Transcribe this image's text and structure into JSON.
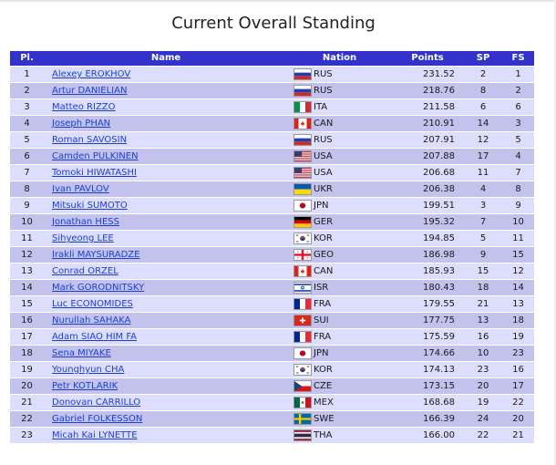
{
  "page": {
    "title": "Current Overall Standing"
  },
  "table": {
    "headers": {
      "pl": "Pl.",
      "name": "Name",
      "nation": "Nation",
      "points": "Points",
      "sp": "SP",
      "fs": "FS"
    },
    "rows": [
      {
        "pl": "1",
        "name": "Alexey EROKHOV",
        "flag": "russia-flag",
        "nation": "RUS",
        "points": "231.52",
        "sp": "2",
        "fs": "1"
      },
      {
        "pl": "2",
        "name": "Artur DANIELIAN",
        "flag": "russia-flag",
        "nation": "RUS",
        "points": "218.76",
        "sp": "8",
        "fs": "2"
      },
      {
        "pl": "3",
        "name": "Matteo RIZZO",
        "flag": "italy-flag",
        "nation": "ITA",
        "points": "211.58",
        "sp": "6",
        "fs": "6"
      },
      {
        "pl": "4",
        "name": "Joseph PHAN",
        "flag": "canada-flag",
        "nation": "CAN",
        "points": "210.91",
        "sp": "14",
        "fs": "3"
      },
      {
        "pl": "5",
        "name": "Roman SAVOSIN",
        "flag": "russia-flag",
        "nation": "RUS",
        "points": "207.91",
        "sp": "12",
        "fs": "5"
      },
      {
        "pl": "6",
        "name": "Camden PULKINEN",
        "flag": "usa-flag",
        "nation": "USA",
        "points": "207.88",
        "sp": "17",
        "fs": "4"
      },
      {
        "pl": "7",
        "name": "Tomoki HIWATASHI",
        "flag": "usa-flag",
        "nation": "USA",
        "points": "206.68",
        "sp": "11",
        "fs": "7"
      },
      {
        "pl": "8",
        "name": "Ivan PAVLOV",
        "flag": "ukraine-flag",
        "nation": "UKR",
        "points": "206.38",
        "sp": "4",
        "fs": "8"
      },
      {
        "pl": "9",
        "name": "Mitsuki SUMOTO",
        "flag": "japan-flag",
        "nation": "JPN",
        "points": "199.51",
        "sp": "3",
        "fs": "9"
      },
      {
        "pl": "10",
        "name": "Jonathan HESS",
        "flag": "germany-flag",
        "nation": "GER",
        "points": "195.32",
        "sp": "7",
        "fs": "10"
      },
      {
        "pl": "11",
        "name": "Sihyeong LEE",
        "flag": "korea-flag",
        "nation": "KOR",
        "points": "194.85",
        "sp": "5",
        "fs": "11"
      },
      {
        "pl": "12",
        "name": "Irakli MAYSURADZE",
        "flag": "georgia-flag",
        "nation": "GEO",
        "points": "186.98",
        "sp": "9",
        "fs": "15"
      },
      {
        "pl": "13",
        "name": "Conrad ORZEL",
        "flag": "canada-flag",
        "nation": "CAN",
        "points": "185.93",
        "sp": "15",
        "fs": "12"
      },
      {
        "pl": "14",
        "name": "Mark GORODNITSKY",
        "flag": "israel-flag",
        "nation": "ISR",
        "points": "180.43",
        "sp": "18",
        "fs": "14"
      },
      {
        "pl": "15",
        "name": "Luc ECONOMIDES",
        "flag": "france-flag",
        "nation": "FRA",
        "points": "179.55",
        "sp": "21",
        "fs": "13"
      },
      {
        "pl": "16",
        "name": "Nurullah SAHAKA",
        "flag": "switzerland-flag",
        "nation": "SUI",
        "points": "177.75",
        "sp": "13",
        "fs": "18"
      },
      {
        "pl": "17",
        "name": "Adam SIAO HIM FA",
        "flag": "france-flag",
        "nation": "FRA",
        "points": "175.59",
        "sp": "16",
        "fs": "19"
      },
      {
        "pl": "18",
        "name": "Sena MIYAKE",
        "flag": "japan-flag",
        "nation": "JPN",
        "points": "174.66",
        "sp": "10",
        "fs": "23"
      },
      {
        "pl": "19",
        "name": "Younghyun CHA",
        "flag": "korea-flag",
        "nation": "KOR",
        "points": "174.13",
        "sp": "23",
        "fs": "16"
      },
      {
        "pl": "20",
        "name": "Petr KOTLARIK",
        "flag": "czechia-flag",
        "nation": "CZE",
        "points": "173.15",
        "sp": "20",
        "fs": "17"
      },
      {
        "pl": "21",
        "name": "Donovan CARRILLO",
        "flag": "mexico-flag",
        "nation": "MEX",
        "points": "168.68",
        "sp": "19",
        "fs": "22"
      },
      {
        "pl": "22",
        "name": "Gabriel FOLKESSON",
        "flag": "sweden-flag",
        "nation": "SWE",
        "points": "166.39",
        "sp": "24",
        "fs": "20"
      },
      {
        "pl": "23",
        "name": "Micah Kai LYNETTE",
        "flag": "thailand-flag",
        "nation": "THA",
        "points": "166.00",
        "sp": "22",
        "fs": "21"
      }
    ]
  },
  "colors": {
    "header_bg": "#3333cc",
    "row_light": "#ddddfe",
    "row_dark": "#c2c2ec",
    "link": "#1a3fd6"
  }
}
